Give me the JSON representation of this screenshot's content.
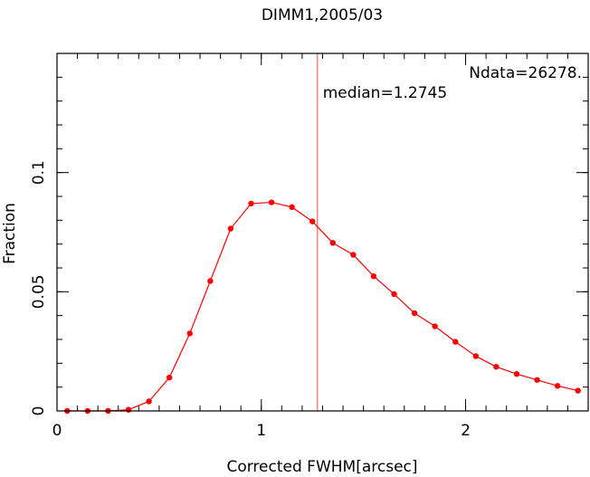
{
  "chart_data": {
    "type": "line",
    "title": "DIMM1,2005/03",
    "xlabel": "Corrected FWHM[arcsec]",
    "ylabel": "Fraction",
    "xlim": [
      0,
      2.6
    ],
    "ylim": [
      0,
      0.15
    ],
    "x_ticks": [
      {
        "value": 0,
        "label": "0"
      },
      {
        "value": 1,
        "label": "1"
      },
      {
        "value": 2,
        "label": "2"
      }
    ],
    "y_ticks": [
      {
        "value": 0,
        "label": "0"
      },
      {
        "value": 0.05,
        "label": "0.05"
      },
      {
        "value": 0.1,
        "label": "0.1"
      }
    ],
    "x_minor_step": 0.1,
    "y_minor_step": 0.01,
    "grid": false,
    "colors": {
      "series": "#ff0000",
      "median_line": "#ff6666",
      "median_text": "#ff2a2a",
      "annotation": "#333333"
    },
    "series": [
      {
        "x": [
          0.05,
          0.15,
          0.25,
          0.35,
          0.45,
          0.55,
          0.65,
          0.75,
          0.85,
          0.95,
          1.05,
          1.15,
          1.25,
          1.35,
          1.45,
          1.55,
          1.65,
          1.75,
          1.85,
          1.95,
          2.05,
          2.15,
          2.25,
          2.35,
          2.45,
          2.55
        ],
        "y": [
          0.0,
          0.0,
          0.0,
          0.0005,
          0.004,
          0.014,
          0.0325,
          0.0545,
          0.0765,
          0.087,
          0.0875,
          0.0855,
          0.0795,
          0.0705,
          0.0655,
          0.0565,
          0.049,
          0.041,
          0.0355,
          0.029,
          0.023,
          0.0185,
          0.0155,
          0.013,
          0.0105,
          0.0085
        ]
      }
    ],
    "median": {
      "value": 1.2745,
      "label": "median=1.2745"
    },
    "annotation": {
      "text": "Ndata=26278."
    }
  }
}
